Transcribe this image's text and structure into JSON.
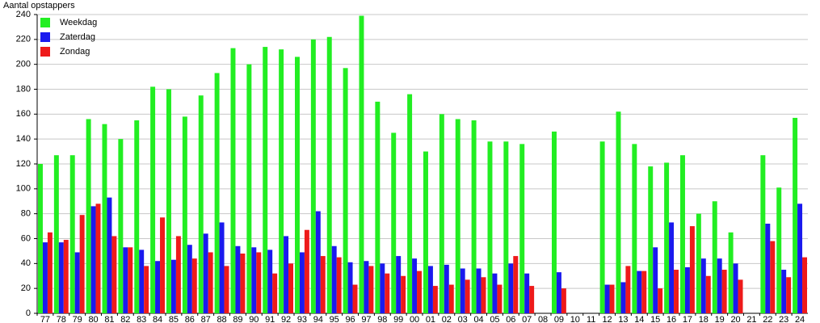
{
  "chart_data": {
    "type": "bar",
    "y_label": "Aantal opstappers",
    "categories": [
      "77",
      "78",
      "79",
      "80",
      "81",
      "82",
      "83",
      "84",
      "85",
      "86",
      "87",
      "88",
      "89",
      "90",
      "91",
      "92",
      "93",
      "94",
      "95",
      "96",
      "97",
      "98",
      "99",
      "00",
      "01",
      "02",
      "03",
      "04",
      "05",
      "06",
      "07",
      "08",
      "09",
      "10",
      "11",
      "12",
      "13",
      "14",
      "15",
      "16",
      "17",
      "18",
      "19",
      "20",
      "21",
      "22",
      "23",
      "24"
    ],
    "series": [
      {
        "name": "Weekdag",
        "color": "#22ee22",
        "values": [
          120,
          127,
          127,
          156,
          152,
          140,
          155,
          182,
          180,
          158,
          175,
          193,
          213,
          200,
          214,
          212,
          206,
          220,
          222,
          197,
          239,
          170,
          145,
          176,
          130,
          160,
          156,
          155,
          138,
          138,
          136,
          null,
          146,
          null,
          null,
          138,
          162,
          136,
          118,
          121,
          127,
          80,
          90,
          65,
          null,
          127,
          101,
          157
        ]
      },
      {
        "name": "Zaterdag",
        "color": "#1a1aee",
        "values": [
          57,
          57,
          49,
          86,
          93,
          53,
          51,
          42,
          43,
          55,
          64,
          73,
          54,
          53,
          51,
          62,
          49,
          82,
          54,
          41,
          42,
          40,
          46,
          44,
          38,
          39,
          36,
          36,
          32,
          40,
          32,
          null,
          33,
          null,
          null,
          23,
          25,
          34,
          53,
          73,
          37,
          44,
          44,
          40,
          null,
          72,
          35,
          88
        ]
      },
      {
        "name": "Zondag",
        "color": "#ee1a1a",
        "values": [
          65,
          59,
          79,
          88,
          62,
          53,
          38,
          77,
          62,
          44,
          49,
          38,
          48,
          49,
          32,
          40,
          67,
          46,
          45,
          23,
          38,
          32,
          30,
          34,
          22,
          23,
          27,
          29,
          23,
          46,
          22,
          null,
          20,
          null,
          null,
          23,
          38,
          34,
          20,
          35,
          70,
          30,
          35,
          27,
          null,
          58,
          29,
          45
        ]
      }
    ],
    "ylim": [
      0,
      240
    ],
    "yticks": [
      0,
      20,
      40,
      60,
      80,
      100,
      120,
      140,
      160,
      180,
      200,
      220,
      240
    ],
    "grid": true,
    "legend": "upper-left"
  }
}
